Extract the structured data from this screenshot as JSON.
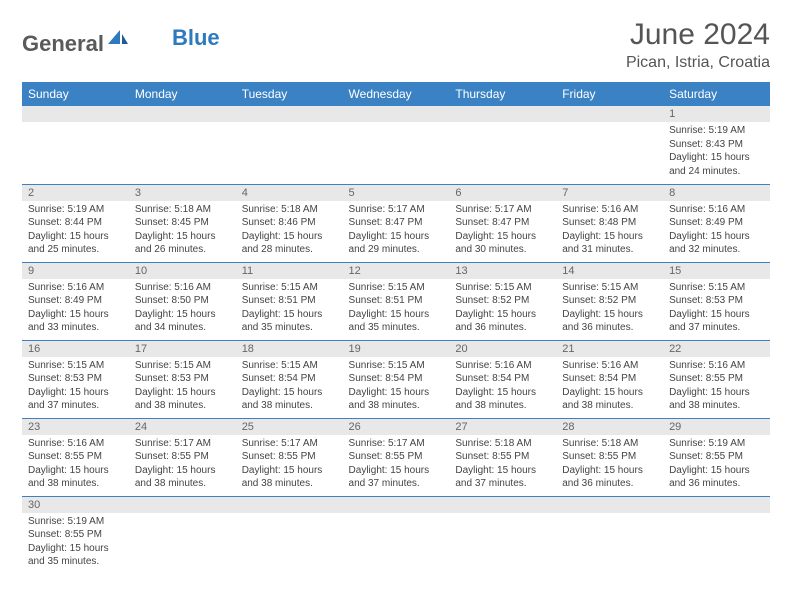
{
  "logo": {
    "general": "General",
    "blue": "Blue"
  },
  "title": "June 2024",
  "location": "Pican, Istria, Croatia",
  "header_bg": "#3b82c4",
  "header_fg": "#ffffff",
  "daynum_bg": "#e8e8e8",
  "border_color": "#3b82c4",
  "weekdays": [
    "Sunday",
    "Monday",
    "Tuesday",
    "Wednesday",
    "Thursday",
    "Friday",
    "Saturday"
  ],
  "first_weekday_index": 6,
  "days": [
    {
      "n": 1,
      "sunrise": "5:19 AM",
      "sunset": "8:43 PM",
      "daylight": "15 hours and 24 minutes."
    },
    {
      "n": 2,
      "sunrise": "5:19 AM",
      "sunset": "8:44 PM",
      "daylight": "15 hours and 25 minutes."
    },
    {
      "n": 3,
      "sunrise": "5:18 AM",
      "sunset": "8:45 PM",
      "daylight": "15 hours and 26 minutes."
    },
    {
      "n": 4,
      "sunrise": "5:18 AM",
      "sunset": "8:46 PM",
      "daylight": "15 hours and 28 minutes."
    },
    {
      "n": 5,
      "sunrise": "5:17 AM",
      "sunset": "8:47 PM",
      "daylight": "15 hours and 29 minutes."
    },
    {
      "n": 6,
      "sunrise": "5:17 AM",
      "sunset": "8:47 PM",
      "daylight": "15 hours and 30 minutes."
    },
    {
      "n": 7,
      "sunrise": "5:16 AM",
      "sunset": "8:48 PM",
      "daylight": "15 hours and 31 minutes."
    },
    {
      "n": 8,
      "sunrise": "5:16 AM",
      "sunset": "8:49 PM",
      "daylight": "15 hours and 32 minutes."
    },
    {
      "n": 9,
      "sunrise": "5:16 AM",
      "sunset": "8:49 PM",
      "daylight": "15 hours and 33 minutes."
    },
    {
      "n": 10,
      "sunrise": "5:16 AM",
      "sunset": "8:50 PM",
      "daylight": "15 hours and 34 minutes."
    },
    {
      "n": 11,
      "sunrise": "5:15 AM",
      "sunset": "8:51 PM",
      "daylight": "15 hours and 35 minutes."
    },
    {
      "n": 12,
      "sunrise": "5:15 AM",
      "sunset": "8:51 PM",
      "daylight": "15 hours and 35 minutes."
    },
    {
      "n": 13,
      "sunrise": "5:15 AM",
      "sunset": "8:52 PM",
      "daylight": "15 hours and 36 minutes."
    },
    {
      "n": 14,
      "sunrise": "5:15 AM",
      "sunset": "8:52 PM",
      "daylight": "15 hours and 36 minutes."
    },
    {
      "n": 15,
      "sunrise": "5:15 AM",
      "sunset": "8:53 PM",
      "daylight": "15 hours and 37 minutes."
    },
    {
      "n": 16,
      "sunrise": "5:15 AM",
      "sunset": "8:53 PM",
      "daylight": "15 hours and 37 minutes."
    },
    {
      "n": 17,
      "sunrise": "5:15 AM",
      "sunset": "8:53 PM",
      "daylight": "15 hours and 38 minutes."
    },
    {
      "n": 18,
      "sunrise": "5:15 AM",
      "sunset": "8:54 PM",
      "daylight": "15 hours and 38 minutes."
    },
    {
      "n": 19,
      "sunrise": "5:15 AM",
      "sunset": "8:54 PM",
      "daylight": "15 hours and 38 minutes."
    },
    {
      "n": 20,
      "sunrise": "5:16 AM",
      "sunset": "8:54 PM",
      "daylight": "15 hours and 38 minutes."
    },
    {
      "n": 21,
      "sunrise": "5:16 AM",
      "sunset": "8:54 PM",
      "daylight": "15 hours and 38 minutes."
    },
    {
      "n": 22,
      "sunrise": "5:16 AM",
      "sunset": "8:55 PM",
      "daylight": "15 hours and 38 minutes."
    },
    {
      "n": 23,
      "sunrise": "5:16 AM",
      "sunset": "8:55 PM",
      "daylight": "15 hours and 38 minutes."
    },
    {
      "n": 24,
      "sunrise": "5:17 AM",
      "sunset": "8:55 PM",
      "daylight": "15 hours and 38 minutes."
    },
    {
      "n": 25,
      "sunrise": "5:17 AM",
      "sunset": "8:55 PM",
      "daylight": "15 hours and 38 minutes."
    },
    {
      "n": 26,
      "sunrise": "5:17 AM",
      "sunset": "8:55 PM",
      "daylight": "15 hours and 37 minutes."
    },
    {
      "n": 27,
      "sunrise": "5:18 AM",
      "sunset": "8:55 PM",
      "daylight": "15 hours and 37 minutes."
    },
    {
      "n": 28,
      "sunrise": "5:18 AM",
      "sunset": "8:55 PM",
      "daylight": "15 hours and 36 minutes."
    },
    {
      "n": 29,
      "sunrise": "5:19 AM",
      "sunset": "8:55 PM",
      "daylight": "15 hours and 36 minutes."
    },
    {
      "n": 30,
      "sunrise": "5:19 AM",
      "sunset": "8:55 PM",
      "daylight": "15 hours and 35 minutes."
    }
  ],
  "labels": {
    "sunrise": "Sunrise:",
    "sunset": "Sunset:",
    "daylight": "Daylight:"
  }
}
